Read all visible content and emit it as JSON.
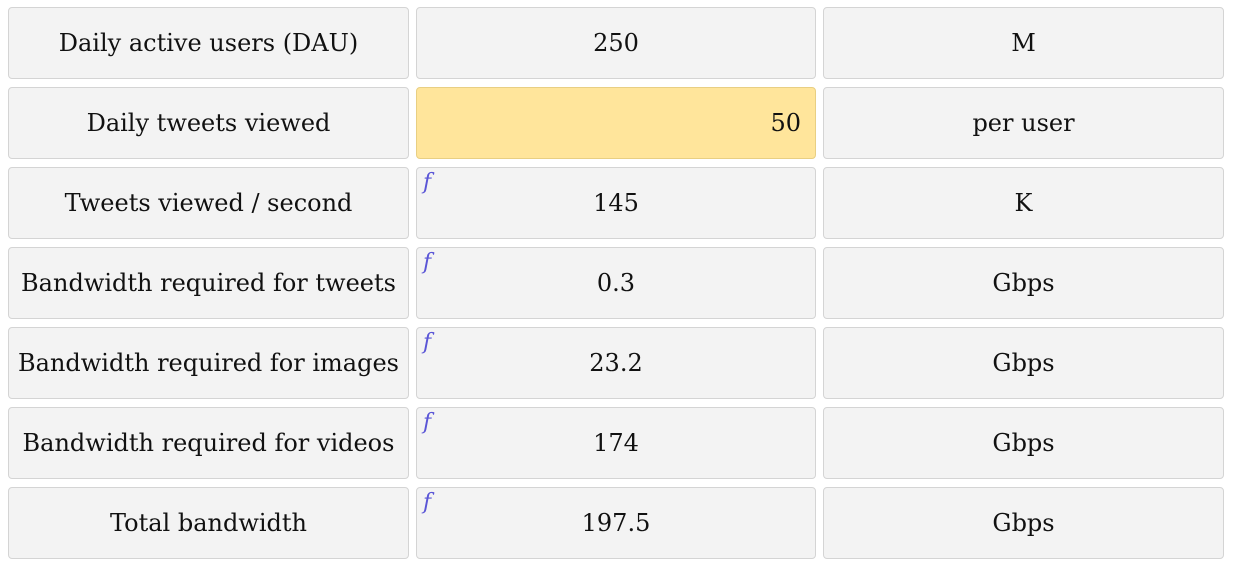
{
  "rows": [
    {
      "label": "Daily active users (DAU)",
      "value": "250",
      "unit": "M",
      "is_input": false,
      "has_formula": false
    },
    {
      "label": "Daily tweets viewed",
      "value": "50",
      "unit": "per user",
      "is_input": true,
      "has_formula": false
    },
    {
      "label": "Tweets viewed / second",
      "value": "145",
      "unit": "K",
      "is_input": false,
      "has_formula": true
    },
    {
      "label": "Bandwidth required for tweets",
      "value": "0.3",
      "unit": "Gbps",
      "is_input": false,
      "has_formula": true
    },
    {
      "label": "Bandwidth required for images",
      "value": "23.2",
      "unit": "Gbps",
      "is_input": false,
      "has_formula": true
    },
    {
      "label": "Bandwidth required for videos",
      "value": "174",
      "unit": "Gbps",
      "is_input": false,
      "has_formula": true
    },
    {
      "label": "Total bandwidth",
      "value": "197.5",
      "unit": "Gbps",
      "is_input": false,
      "has_formula": true
    }
  ],
  "formula_icon": {
    "name": "formula-icon",
    "glyph": "f",
    "color": "#5a55d6"
  },
  "colors": {
    "cell_background": "#f3f3f3",
    "input_background": "#ffe59b",
    "cell_border": "#d4d4d4"
  }
}
